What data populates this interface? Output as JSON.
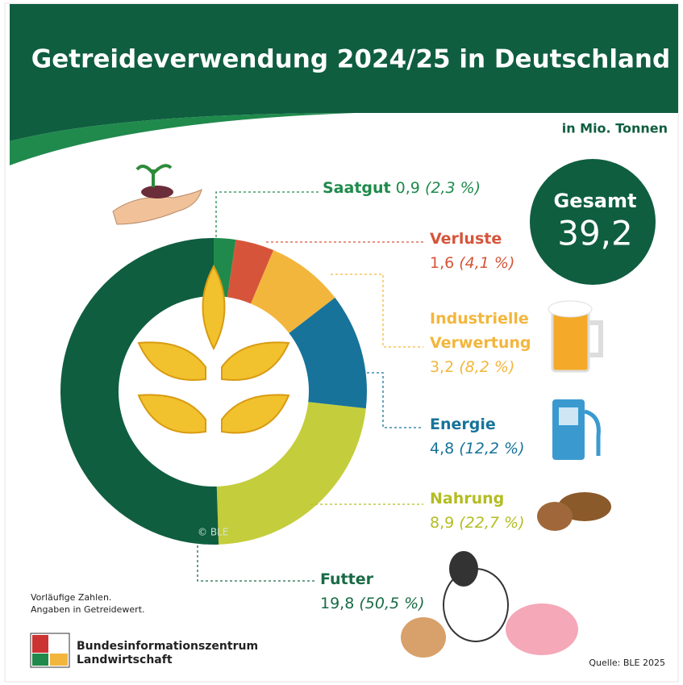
{
  "chart_data": {
    "type": "donut",
    "title": "Getreideverwendung 2024/25 in Deutschland",
    "unit": "in Mio. Tonnen",
    "categories": [
      "Saatgut",
      "Verluste",
      "Industrielle Verwertung",
      "Energie",
      "Nahrung",
      "Futter"
    ],
    "values": [
      0.9,
      1.6,
      3.2,
      4.8,
      8.9,
      19.8
    ],
    "value_labels": [
      "0,9",
      "1,6",
      "3,2",
      "4,8",
      "8,9",
      "19,8"
    ],
    "shares": [
      2.3,
      4.1,
      8.2,
      12.2,
      22.7,
      50.5
    ],
    "share_labels": [
      "(2,3 %)",
      "(4,1 %)",
      "(8,2 %)",
      "(12,2 %)",
      "(22,7 %)",
      "(50,5 %)"
    ],
    "colors": [
      "#1f8a4c",
      "#d6553a",
      "#f3b63c",
      "#17739a",
      "#c4cd3b",
      "#0f5e40"
    ],
    "total_title": "Gesamt",
    "total": {
      "value": 39.2,
      "label": "39,2"
    },
    "copyright": "© BLE",
    "notes": [
      "Vorläufige Zahlen.",
      "Angaben in Getreidewert."
    ],
    "publisher": [
      "Bundesinformationszentrum",
      "Landwirtschaft"
    ],
    "source": "Quelle: BLE 2025"
  }
}
